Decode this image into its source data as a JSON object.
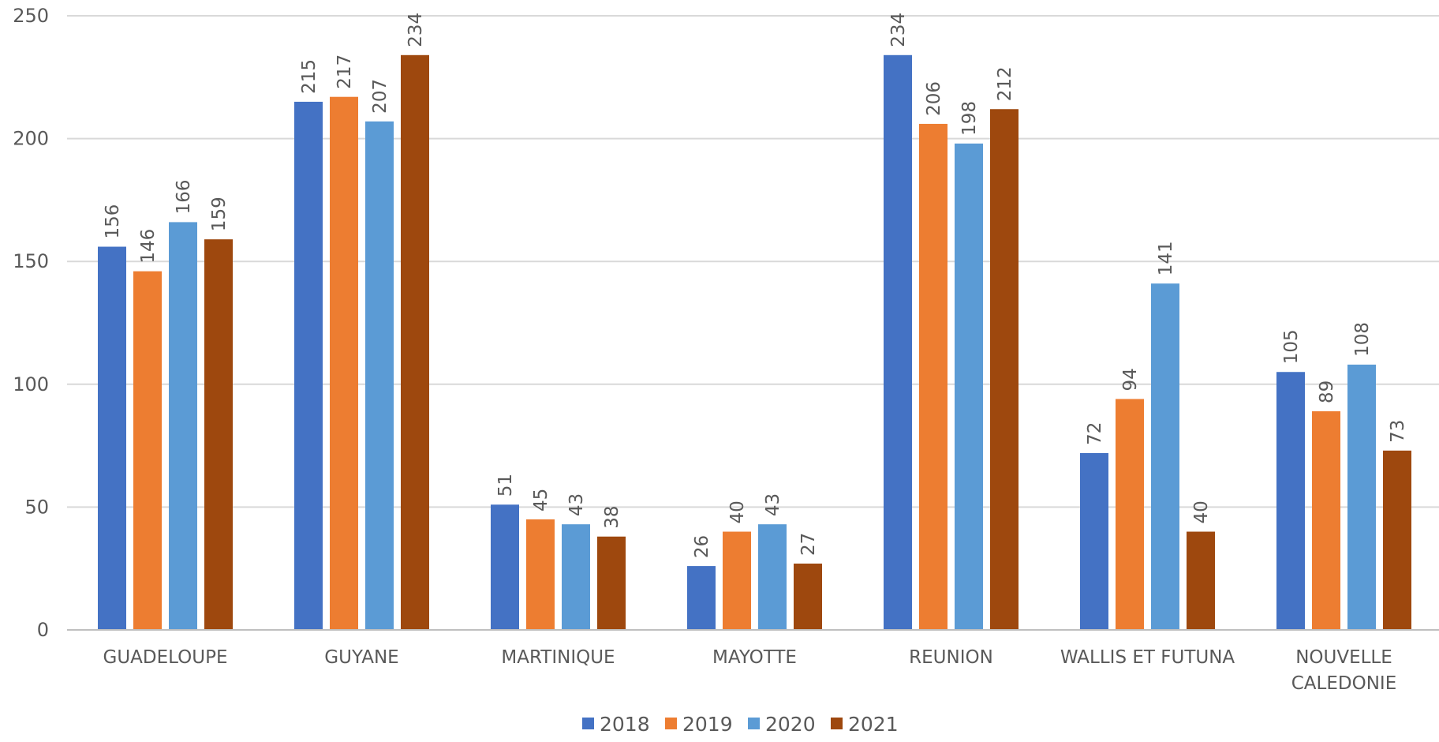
{
  "chart_data": {
    "type": "bar",
    "title": "",
    "xlabel": "",
    "ylabel": "",
    "ylim": [
      0,
      250
    ],
    "yticks": [
      0,
      50,
      100,
      150,
      200,
      250
    ],
    "grid": true,
    "legend_position": "bottom",
    "data_labels": true,
    "categories": [
      [
        "GUADELOUPE"
      ],
      [
        "GUYANE"
      ],
      [
        "MARTINIQUE"
      ],
      [
        "MAYOTTE"
      ],
      [
        "REUNION"
      ],
      [
        "WALLIS ET FUTUNA"
      ],
      [
        "NOUVELLE",
        "CALEDONIE"
      ]
    ],
    "series": [
      {
        "name": "2018",
        "color": "#4472c4",
        "values": [
          156,
          215,
          51,
          26,
          234,
          72,
          105
        ]
      },
      {
        "name": "2019",
        "color": "#ed7d31",
        "values": [
          146,
          217,
          45,
          40,
          206,
          94,
          89
        ]
      },
      {
        "name": "2020",
        "color": "#5b9bd5",
        "values": [
          166,
          207,
          43,
          43,
          198,
          141,
          108
        ]
      },
      {
        "name": "2021",
        "color": "#9e480e",
        "values": [
          159,
          234,
          38,
          27,
          212,
          40,
          73
        ]
      }
    ]
  }
}
